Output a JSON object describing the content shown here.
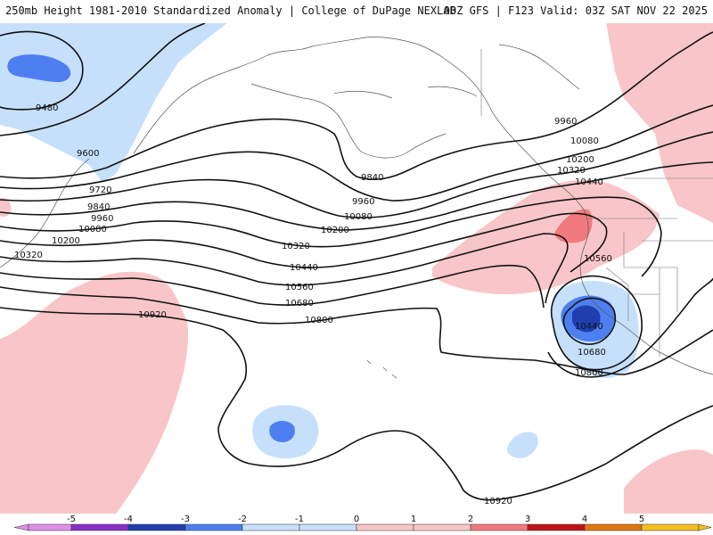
{
  "header": {
    "title_left": "250mb Height 1981-2010 Standardized Anomaly | College of DuPage NEXLAB",
    "title_right": "00Z GFS | F123 Valid: 03Z SAT NOV 22 2025"
  },
  "colors": {
    "neg5": "#e090e8",
    "neg4": "#8a2ec8",
    "neg3": "#1f3fae",
    "neg2": "#4d7ff0",
    "neg1": "#c6e0fb",
    "pos1": "#f8c6c8",
    "pos2": "#f07a7e",
    "pos3": "#c0141a",
    "pos4": "#e07810",
    "pos5": "#f4c020",
    "contour": "#111111"
  },
  "colorbar": {
    "ticks": [
      "-5",
      "-4",
      "-3",
      "-2",
      "-1",
      "0",
      "1",
      "2",
      "3",
      "4",
      "5"
    ]
  },
  "contour_labels": [
    "9480",
    "9600",
    "9720",
    "9840",
    "9960",
    "10080",
    "10200",
    "10320",
    "9840",
    "9960",
    "10080",
    "10200",
    "10320",
    "10440",
    "10560",
    "10680",
    "10800",
    "10920",
    "9960",
    "10080",
    "10200",
    "10320",
    "10440",
    "10560",
    "10440",
    "10680",
    "10800",
    "10920"
  ]
}
